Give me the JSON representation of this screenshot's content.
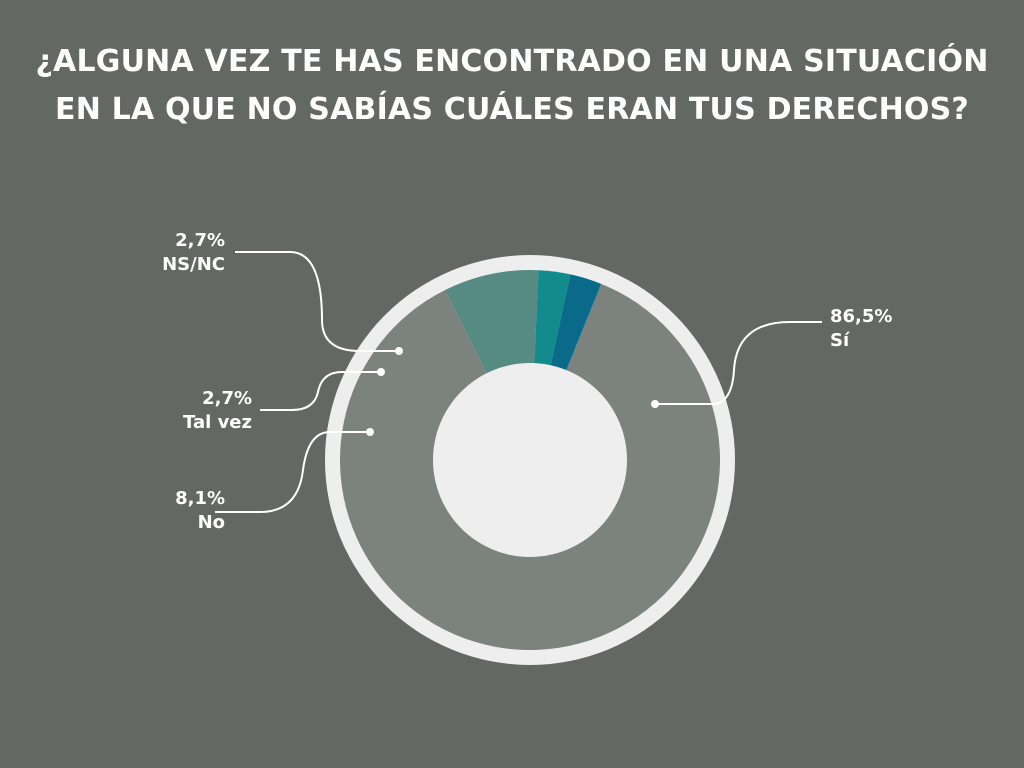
{
  "chart_data": {
    "type": "pie",
    "title_lines": [
      "¿ALGUNA VEZ TE HAS ENCONTRADO EN UNA SITUACIÓN",
      "EN LA QUE NO SABÍAS CUÁLES ERAN TUS DERECHOS?"
    ],
    "slices": [
      {
        "label": "Sí",
        "value": 86.5,
        "value_label": "86,5%",
        "color": "#7c827e"
      },
      {
        "label": "No",
        "value": 8.1,
        "value_label": "8,1%",
        "color": "#558b82"
      },
      {
        "label": "Tal vez",
        "value": 2.7,
        "value_label": "2,7%",
        "color": "#138a8c"
      },
      {
        "label": "NS/NC",
        "value": 2.7,
        "value_label": "2,7%",
        "color": "#0a6a8a"
      }
    ]
  },
  "colors": {
    "background": "#636865",
    "ring": "#eeeeee",
    "text": "#ffffff"
  }
}
